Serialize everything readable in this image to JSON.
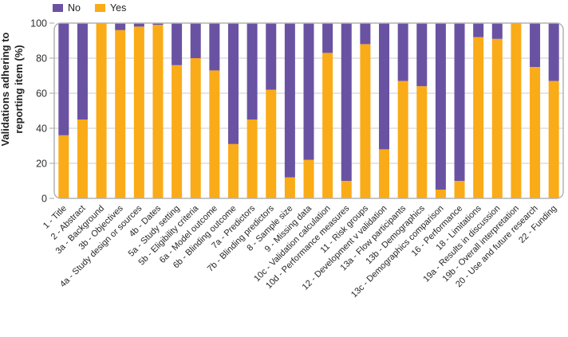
{
  "chart_data": {
    "type": "bar",
    "stacked": true,
    "ylabel": "Validations adhering to reporting item (%)",
    "xlabel": "",
    "ylim": [
      0,
      100
    ],
    "yticks": [
      0,
      20,
      40,
      60,
      80,
      100
    ],
    "grid": true,
    "legend_position": "top-left",
    "categories": [
      "1 - Title",
      "2 - Abstract",
      "3a - Background",
      "3b - Objectives",
      "4a - Study design or sources",
      "4b - Dates",
      "5a - Study setting",
      "5b - Eligibility criteria",
      "6a - Model outcome",
      "6b - Blinding outcome",
      "7a - Predictors",
      "7b - Blinding predictors",
      "8 - Sample size",
      "9 - Missing data",
      "10c - Validation calculation",
      "10d - Performance measures",
      "11 - Risk groups",
      "12 - Development v validation",
      "13a - Flow participants",
      "13b - Demographics",
      "13c - Demographics comparison",
      "16 - Performance",
      "18 - Limitations",
      "19a - Results in discussion",
      "19b - Overall interpretation",
      "20 - Use and future research",
      "22 - Funding"
    ],
    "series": [
      {
        "name": "No",
        "color": "#6A52A3",
        "values": [
          64,
          55,
          0,
          4,
          2,
          1,
          24,
          20,
          27,
          69,
          55,
          38,
          88,
          78,
          17,
          90,
          12,
          72,
          33,
          36,
          95,
          90,
          8,
          9,
          0,
          25,
          33
        ]
      },
      {
        "name": "Yes",
        "color": "#FAAB18",
        "values": [
          36,
          45,
          100,
          96,
          98,
          99,
          76,
          80,
          73,
          31,
          45,
          62,
          12,
          22,
          83,
          10,
          88,
          28,
          67,
          64,
          5,
          10,
          92,
          91,
          100,
          75,
          67
        ]
      }
    ]
  }
}
